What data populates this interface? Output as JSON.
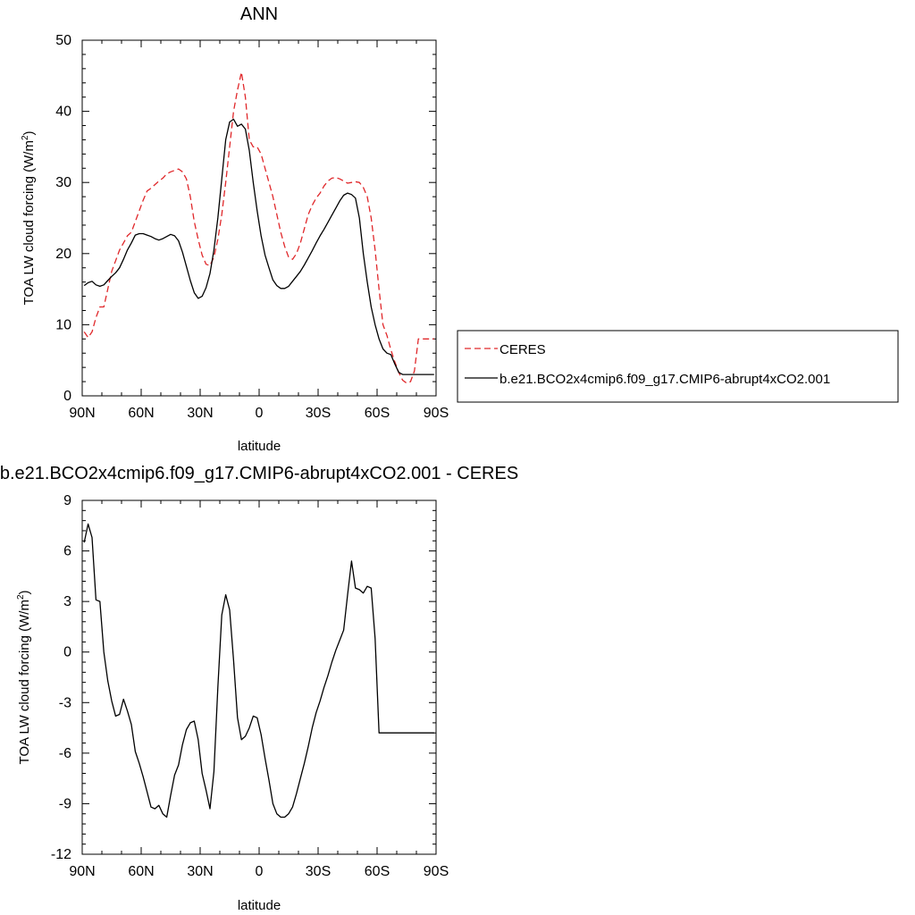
{
  "chart_data": [
    {
      "type": "line",
      "title": "ANN",
      "xlabel": "latitude",
      "ylabel": "TOA LW cloud forcing (W/m",
      "ylabel_sup": "2",
      "ylabel_tail": ")",
      "xlim": [
        -90,
        90
      ],
      "ylim": [
        0,
        50
      ],
      "xticks": [
        -90,
        -60,
        -30,
        0,
        30,
        60,
        90
      ],
      "xtick_labels": [
        "90N",
        "60N",
        "30N",
        "0",
        "30S",
        "60S",
        "90S"
      ],
      "yticks": [
        0,
        10,
        20,
        30,
        40,
        50
      ],
      "ytick_labels": [
        "0",
        "10",
        "20",
        "30",
        "40",
        "50"
      ],
      "grid": false,
      "legend_position": "right",
      "series": [
        {
          "name": "CERES",
          "color": "#e0272a",
          "dash": "dashed",
          "x": [
            -89,
            -87,
            -85,
            -83,
            -81,
            -79,
            -77,
            -75,
            -73,
            -71,
            -69,
            -67,
            -65,
            -63,
            -61,
            -59,
            -57,
            -55,
            -53,
            -51,
            -49,
            -47,
            -45,
            -43,
            -41,
            -39,
            -37,
            -35,
            -33,
            -31,
            -29,
            -27,
            -25,
            -23,
            -21,
            -19,
            -17,
            -15,
            -13,
            -11,
            -9,
            -7,
            -5,
            -3,
            -1,
            1,
            3,
            5,
            7,
            9,
            11,
            13,
            15,
            17,
            19,
            21,
            23,
            25,
            27,
            29,
            31,
            33,
            35,
            37,
            39,
            41,
            43,
            45,
            47,
            49,
            51,
            53,
            55,
            57,
            59,
            61,
            63,
            65,
            67,
            69,
            71,
            73,
            75,
            77,
            79,
            81,
            83,
            85,
            87,
            89
          ],
          "y": [
            9.0,
            8.2,
            9.0,
            11.0,
            12.5,
            12.5,
            15.0,
            17.5,
            19.0,
            20.5,
            21.5,
            22.5,
            23.0,
            24.5,
            26.0,
            27.5,
            28.8,
            29.2,
            29.7,
            30.2,
            30.6,
            31.2,
            31.5,
            31.7,
            31.9,
            31.5,
            30.5,
            28.0,
            24.5,
            22.0,
            19.8,
            18.5,
            18.3,
            19.5,
            22.0,
            25.5,
            30.0,
            35.0,
            40.0,
            43.0,
            45.5,
            42.0,
            36.0,
            35.0,
            35.0,
            34.0,
            32.0,
            30.0,
            28.0,
            25.5,
            23.0,
            21.0,
            19.5,
            19.2,
            20.0,
            21.5,
            23.5,
            25.5,
            26.8,
            27.8,
            28.5,
            29.5,
            30.2,
            30.6,
            30.7,
            30.5,
            30.2,
            29.9,
            30.0,
            30.1,
            30.0,
            29.3,
            28.0,
            25.0,
            20.5,
            15.0,
            10.0,
            8.5,
            6.5,
            4.8,
            3.3,
            2.2,
            1.8,
            2.0,
            3.5,
            8.0,
            8.0,
            8.0,
            8.0,
            8.0
          ]
        },
        {
          "name": "b.e21.BCO2x4cmip6.f09_g17.CMIP6-abrupt4xCO2.001",
          "color": "#000000",
          "dash": "solid",
          "x": [
            -89,
            -87,
            -85,
            -83,
            -81,
            -79,
            -77,
            -75,
            -73,
            -71,
            -69,
            -67,
            -65,
            -63,
            -61,
            -59,
            -57,
            -55,
            -53,
            -51,
            -49,
            -47,
            -45,
            -43,
            -41,
            -39,
            -37,
            -35,
            -33,
            -31,
            -29,
            -27,
            -25,
            -23,
            -21,
            -19,
            -17,
            -15,
            -13,
            -11,
            -9,
            -7,
            -5,
            -3,
            -1,
            1,
            3,
            5,
            7,
            9,
            11,
            13,
            15,
            17,
            19,
            21,
            23,
            25,
            27,
            29,
            31,
            33,
            35,
            37,
            39,
            41,
            43,
            45,
            47,
            49,
            51,
            53,
            55,
            57,
            59,
            61,
            63,
            65,
            67,
            69,
            71,
            73,
            75,
            77,
            79,
            81,
            83,
            85,
            87,
            89
          ],
          "y": [
            15.5,
            15.9,
            16.1,
            15.6,
            15.4,
            15.6,
            16.2,
            16.8,
            17.3,
            18.0,
            19.2,
            20.5,
            21.5,
            22.6,
            22.8,
            22.8,
            22.6,
            22.4,
            22.1,
            21.9,
            22.1,
            22.4,
            22.7,
            22.5,
            21.8,
            20.2,
            18.2,
            16.2,
            14.5,
            13.7,
            14.0,
            15.2,
            17.2,
            20.5,
            25.0,
            30.5,
            36.0,
            38.5,
            38.9,
            37.9,
            38.2,
            37.5,
            34.5,
            30.0,
            26.0,
            22.5,
            19.8,
            18.0,
            16.3,
            15.5,
            15.1,
            15.1,
            15.4,
            16.1,
            16.8,
            17.5,
            18.4,
            19.4,
            20.4,
            21.5,
            22.5,
            23.4,
            24.4,
            25.4,
            26.4,
            27.4,
            28.2,
            28.5,
            28.3,
            27.8,
            25.0,
            20.0,
            16.0,
            12.5,
            10.0,
            8.0,
            6.6,
            6.0,
            5.8,
            4.5,
            3.3,
            3.0,
            3.0,
            3.0,
            3.0,
            3.0,
            3.0,
            3.0,
            3.0,
            3.0
          ]
        }
      ]
    },
    {
      "type": "line",
      "title": "b.e21.BCO2x4cmip6.f09_g17.CMIP6-abrupt4xCO2.001 - CERES",
      "xlabel": "latitude",
      "ylabel": "TOA LW cloud forcing (W/m",
      "ylabel_sup": "2",
      "ylabel_tail": ")",
      "xlim": [
        -90,
        90
      ],
      "ylim": [
        -12,
        9
      ],
      "xticks": [
        -90,
        -60,
        -30,
        0,
        30,
        60,
        90
      ],
      "xtick_labels": [
        "90N",
        "60N",
        "30N",
        "0",
        "30S",
        "60S",
        "90S"
      ],
      "yticks": [
        -12,
        -9,
        -6,
        -3,
        0,
        3,
        6,
        9
      ],
      "ytick_labels": [
        "-12",
        "-9",
        "-6",
        "-3",
        "0",
        "3",
        "6",
        "9"
      ],
      "grid": false,
      "series": [
        {
          "color": "#000000",
          "dash": "solid",
          "x": [
            -89,
            -87,
            -85,
            -83,
            -81,
            -79,
            -77,
            -75,
            -73,
            -71,
            -69,
            -67,
            -65,
            -63,
            -61,
            -59,
            -57,
            -55,
            -53,
            -51,
            -49,
            -47,
            -45,
            -43,
            -41,
            -39,
            -37,
            -35,
            -33,
            -31,
            -29,
            -27,
            -25,
            -23,
            -21,
            -19,
            -17,
            -15,
            -13,
            -11,
            -9,
            -7,
            -5,
            -3,
            -1,
            1,
            3,
            5,
            7,
            9,
            11,
            13,
            15,
            17,
            19,
            21,
            23,
            25,
            27,
            29,
            31,
            33,
            35,
            37,
            39,
            41,
            43,
            45,
            47,
            49,
            51,
            53,
            55,
            57,
            59,
            61,
            63,
            65,
            67,
            69,
            71,
            73,
            75,
            77,
            79,
            81,
            83,
            85,
            87,
            89
          ],
          "y": [
            6.5,
            7.6,
            6.8,
            3.1,
            3.0,
            0.0,
            -1.7,
            -2.9,
            -3.8,
            -3.7,
            -2.8,
            -3.5,
            -4.3,
            -5.9,
            -6.6,
            -7.4,
            -8.3,
            -9.2,
            -9.3,
            -9.1,
            -9.6,
            -9.8,
            -8.5,
            -7.3,
            -6.7,
            -5.5,
            -4.6,
            -4.2,
            -4.1,
            -5.2,
            -7.2,
            -8.2,
            -9.3,
            -7.1,
            -2.1,
            2.2,
            3.4,
            2.5,
            -0.5,
            -3.9,
            -5.2,
            -5.0,
            -4.5,
            -3.8,
            -3.9,
            -4.9,
            -6.3,
            -7.6,
            -9.0,
            -9.6,
            -9.8,
            -9.8,
            -9.6,
            -9.2,
            -8.4,
            -7.5,
            -6.6,
            -5.6,
            -4.5,
            -3.6,
            -2.9,
            -2.1,
            -1.4,
            -0.6,
            0.1,
            0.7,
            1.3,
            3.4,
            5.4,
            3.8,
            3.7,
            3.5,
            3.9,
            3.8,
            0.8,
            -4.8,
            -4.8,
            -4.8,
            -4.8,
            -4.8,
            -4.8,
            -4.8,
            -4.8,
            -4.8,
            -4.8,
            -4.8,
            -4.8,
            -4.8,
            -4.8,
            -4.8
          ]
        }
      ]
    }
  ]
}
